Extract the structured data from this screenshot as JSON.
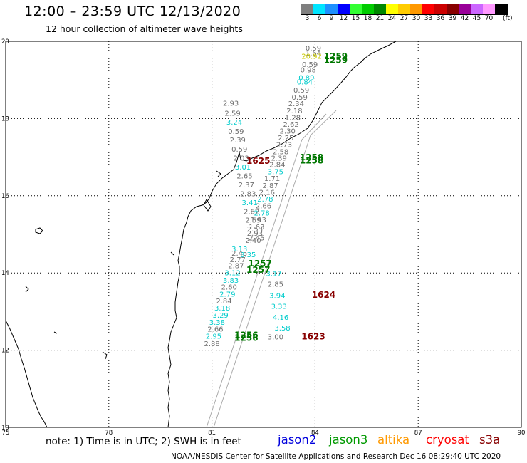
{
  "header": {
    "title": "12:00 – 23:59 UTC 12/13/2020",
    "subtitle": "12 hour collection of altimeter wave heights"
  },
  "scale": {
    "unit": "(ft)",
    "bins": [
      {
        "label": "3",
        "color": "#7f7f7f"
      },
      {
        "label": "6",
        "color": "#00e5ff"
      },
      {
        "label": "9",
        "color": "#1e90ff"
      },
      {
        "label": "12",
        "color": "#0000ff"
      },
      {
        "label": "15",
        "color": "#33ff33"
      },
      {
        "label": "18",
        "color": "#00cc00"
      },
      {
        "label": "21",
        "color": "#008800"
      },
      {
        "label": "24",
        "color": "#ffff00"
      },
      {
        "label": "27",
        "color": "#ffcc00"
      },
      {
        "label": "30",
        "color": "#ff9900"
      },
      {
        "label": "33",
        "color": "#ff0000"
      },
      {
        "label": "36",
        "color": "#cc0000"
      },
      {
        "label": "39",
        "color": "#880000"
      },
      {
        "label": "42",
        "color": "#990099"
      },
      {
        "label": "45",
        "color": "#cc66ff"
      },
      {
        "label": "70",
        "color": "#ff99ff"
      },
      {
        "label": "",
        "color": "#000000"
      }
    ]
  },
  "map": {
    "lat_range": [
      10,
      20
    ],
    "lon_range": [
      75,
      90
    ],
    "lat_ticks": [
      "10",
      "12",
      "14",
      "16",
      "18",
      "20"
    ],
    "lon_ticks": [
      "75",
      "78",
      "81",
      "84",
      "87",
      "90"
    ],
    "gray_color": "#707070",
    "cyan_color": "#00cccc",
    "wave_labels": [
      {
        "text": "0.59",
        "lat": 19.76,
        "lon": 83.95,
        "color": "gray"
      },
      {
        "text": "1.64",
        "lat": 19.63,
        "lon": 83.95,
        "color": "gray"
      },
      {
        "text": "20.92",
        "lat": 19.55,
        "lon": 83.9,
        "color": "yellow"
      },
      {
        "text": "0.59",
        "lat": 19.34,
        "lon": 83.85,
        "color": "gray"
      },
      {
        "text": "0.98",
        "lat": 19.2,
        "lon": 83.8,
        "color": "gray"
      },
      {
        "text": "0.89",
        "lat": 18.99,
        "lon": 83.75,
        "color": "cyan"
      },
      {
        "text": "0.84",
        "lat": 18.88,
        "lon": 83.7,
        "color": "cyan"
      },
      {
        "text": "0.59",
        "lat": 18.67,
        "lon": 83.6,
        "color": "gray"
      },
      {
        "text": "0.59",
        "lat": 18.49,
        "lon": 83.55,
        "color": "gray"
      },
      {
        "text": "2.34",
        "lat": 18.32,
        "lon": 83.45,
        "color": "gray"
      },
      {
        "text": "2.18",
        "lat": 18.14,
        "lon": 83.4,
        "color": "gray"
      },
      {
        "text": "1.28",
        "lat": 17.96,
        "lon": 83.35,
        "color": "gray"
      },
      {
        "text": "2.62",
        "lat": 17.79,
        "lon": 83.3,
        "color": "gray"
      },
      {
        "text": "2.30",
        "lat": 17.61,
        "lon": 83.2,
        "color": "gray"
      },
      {
        "text": "2.25",
        "lat": 17.44,
        "lon": 83.15,
        "color": "gray"
      },
      {
        "text": "2.73",
        "lat": 17.26,
        "lon": 83.1,
        "color": "gray"
      },
      {
        "text": "2.58",
        "lat": 17.08,
        "lon": 83.0,
        "color": "gray"
      },
      {
        "text": "2.39",
        "lat": 16.91,
        "lon": 82.95,
        "color": "gray"
      },
      {
        "text": "2.84",
        "lat": 16.74,
        "lon": 82.9,
        "color": "gray"
      },
      {
        "text": "3.75",
        "lat": 16.56,
        "lon": 82.85,
        "color": "cyan"
      },
      {
        "text": "1.71",
        "lat": 16.38,
        "lon": 82.75,
        "color": "gray"
      },
      {
        "text": "2.87",
        "lat": 16.2,
        "lon": 82.7,
        "color": "gray"
      },
      {
        "text": "2.16",
        "lat": 16.02,
        "lon": 82.6,
        "color": "gray"
      },
      {
        "text": "2.78",
        "lat": 15.85,
        "lon": 82.55,
        "color": "cyan"
      },
      {
        "text": "2.66",
        "lat": 15.67,
        "lon": 82.5,
        "color": "gray"
      },
      {
        "text": "2.78",
        "lat": 15.49,
        "lon": 82.45,
        "color": "cyan"
      },
      {
        "text": "1.93",
        "lat": 15.31,
        "lon": 82.35,
        "color": "gray"
      },
      {
        "text": "1.63",
        "lat": 15.13,
        "lon": 82.3,
        "color": "gray"
      },
      {
        "text": "2.93",
        "lat": 14.96,
        "lon": 82.25,
        "color": "gray"
      },
      {
        "text": "2.40",
        "lat": 14.78,
        "lon": 82.2,
        "color": "gray"
      },
      {
        "text": "3.35",
        "lat": 14.41,
        "lon": 82.05,
        "color": "cyan"
      },
      {
        "text": "2.93",
        "lat": 18.33,
        "lon": 81.55,
        "color": "gray"
      },
      {
        "text": "2.59",
        "lat": 18.07,
        "lon": 81.6,
        "color": "gray"
      },
      {
        "text": "3.24",
        "lat": 17.84,
        "lon": 81.65,
        "color": "cyan"
      },
      {
        "text": "0.59",
        "lat": 17.6,
        "lon": 81.7,
        "color": "gray"
      },
      {
        "text": "2.39",
        "lat": 17.38,
        "lon": 81.75,
        "color": "gray"
      },
      {
        "text": "0.59",
        "lat": 17.14,
        "lon": 81.8,
        "color": "gray"
      },
      {
        "text": "2.03",
        "lat": 16.91,
        "lon": 81.85,
        "color": "gray"
      },
      {
        "text": "3.01",
        "lat": 16.68,
        "lon": 81.9,
        "color": "cyan"
      },
      {
        "text": "2.65",
        "lat": 16.45,
        "lon": 81.95,
        "color": "gray"
      },
      {
        "text": "2.37",
        "lat": 16.22,
        "lon": 82.0,
        "color": "gray"
      },
      {
        "text": "2.83",
        "lat": 15.99,
        "lon": 82.05,
        "color": "gray"
      },
      {
        "text": "3.41",
        "lat": 15.76,
        "lon": 82.1,
        "color": "cyan"
      },
      {
        "text": "2.62",
        "lat": 15.53,
        "lon": 82.15,
        "color": "gray"
      },
      {
        "text": "2.59",
        "lat": 15.3,
        "lon": 82.2,
        "color": "gray"
      },
      {
        "text": "2.53",
        "lat": 15.07,
        "lon": 82.25,
        "color": "gray"
      },
      {
        "text": "2.45",
        "lat": 14.84,
        "lon": 82.3,
        "color": "gray"
      },
      {
        "text": "3.13",
        "lat": 14.56,
        "lon": 81.8,
        "color": "cyan"
      },
      {
        "text": "2.45",
        "lat": 14.45,
        "lon": 81.8,
        "color": "gray"
      },
      {
        "text": "2.77",
        "lat": 14.28,
        "lon": 81.75,
        "color": "gray"
      },
      {
        "text": "2.87",
        "lat": 14.12,
        "lon": 81.7,
        "color": "gray"
      },
      {
        "text": "3.12",
        "lat": 13.94,
        "lon": 81.6,
        "color": "cyan"
      },
      {
        "text": "3.83",
        "lat": 13.75,
        "lon": 81.55,
        "color": "cyan"
      },
      {
        "text": "2.60",
        "lat": 13.57,
        "lon": 81.5,
        "color": "gray"
      },
      {
        "text": "2.79",
        "lat": 13.39,
        "lon": 81.45,
        "color": "cyan"
      },
      {
        "text": "2.84",
        "lat": 13.21,
        "lon": 81.35,
        "color": "gray"
      },
      {
        "text": "3.18",
        "lat": 13.03,
        "lon": 81.3,
        "color": "cyan"
      },
      {
        "text": "3.29",
        "lat": 12.84,
        "lon": 81.25,
        "color": "cyan"
      },
      {
        "text": "3.38",
        "lat": 12.66,
        "lon": 81.15,
        "color": "cyan"
      },
      {
        "text": "2.66",
        "lat": 12.48,
        "lon": 81.1,
        "color": "gray"
      },
      {
        "text": "2.95",
        "lat": 12.3,
        "lon": 81.05,
        "color": "cyan"
      },
      {
        "text": "2.88",
        "lat": 12.1,
        "lon": 81.0,
        "color": "gray"
      },
      {
        "text": "3.17",
        "lat": 13.92,
        "lon": 82.8,
        "color": "cyan"
      },
      {
        "text": "2.85",
        "lat": 13.64,
        "lon": 82.85,
        "color": "gray"
      },
      {
        "text": "3.94",
        "lat": 13.35,
        "lon": 82.9,
        "color": "cyan"
      },
      {
        "text": "3.33",
        "lat": 13.07,
        "lon": 82.95,
        "color": "cyan"
      },
      {
        "text": "4.16",
        "lat": 12.79,
        "lon": 83.0,
        "color": "cyan"
      },
      {
        "text": "3.58",
        "lat": 12.51,
        "lon": 83.05,
        "color": "cyan"
      },
      {
        "text": "3.00",
        "lat": 12.28,
        "lon": 82.85,
        "color": "gray"
      }
    ],
    "time_labels": [
      {
        "text": "1259",
        "lat": 19.54,
        "lon": 84.6,
        "color": "#007700"
      },
      {
        "text": "1259",
        "lat": 19.44,
        "lon": 84.6,
        "color": "#007700"
      },
      {
        "text": "1258",
        "lat": 16.92,
        "lon": 83.9,
        "color": "#007700"
      },
      {
        "text": "1258",
        "lat": 16.84,
        "lon": 83.9,
        "color": "#007700"
      },
      {
        "text": "1625",
        "lat": 16.83,
        "lon": 82.35,
        "color": "#880000"
      },
      {
        "text": "1257",
        "lat": 14.17,
        "lon": 82.4,
        "color": "#007700"
      },
      {
        "text": "1257",
        "lat": 14.0,
        "lon": 82.35,
        "color": "#007700"
      },
      {
        "text": "1624",
        "lat": 13.36,
        "lon": 84.25,
        "color": "#880000"
      },
      {
        "text": "1256",
        "lat": 12.32,
        "lon": 82.0,
        "color": "#007700"
      },
      {
        "text": "1256",
        "lat": 12.24,
        "lon": 82.0,
        "color": "#007700"
      },
      {
        "text": "1623",
        "lat": 12.28,
        "lon": 83.95,
        "color": "#880000"
      }
    ]
  },
  "note": "note: 1) Time is in UTC; 2) SWH is in feet",
  "legend": [
    {
      "label": "jason2",
      "color": "#0000dd"
    },
    {
      "label": "jason3",
      "color": "#009900"
    },
    {
      "label": "altika",
      "color": "#ff9900"
    },
    {
      "label": "cryosat",
      "color": "#ff0000"
    },
    {
      "label": "s3a",
      "color": "#880000"
    }
  ],
  "footer": "NOAA/NESDIS Center for Satellite Applications and Research    Dec 16 08:29:40 UTC 2020"
}
